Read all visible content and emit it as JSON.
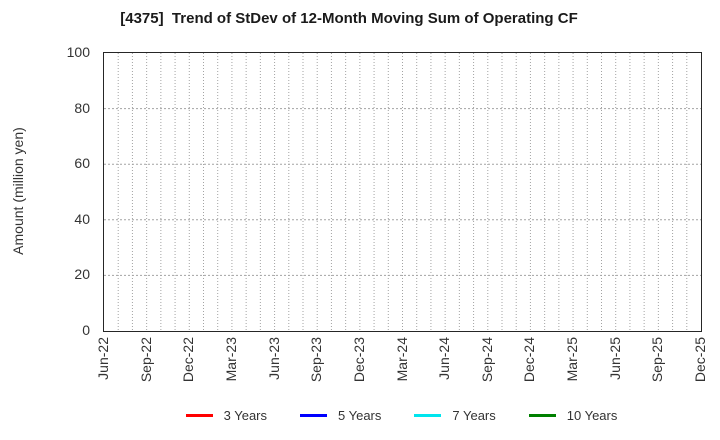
{
  "title": "[4375]  Trend of StDev of 12-Month Moving Sum of Operating CF",
  "y_axis": {
    "label": "Amount (million yen)",
    "min": 0,
    "max": 100,
    "ticks": [
      100,
      80,
      60,
      40,
      20,
      0
    ]
  },
  "x_axis": {
    "tick_labels": [
      "Jun-22",
      "Sep-22",
      "Dec-22",
      "Mar-23",
      "Jun-23",
      "Sep-23",
      "Dec-23",
      "Mar-24",
      "Jun-24",
      "Sep-24",
      "Dec-24",
      "Mar-25",
      "Jun-25",
      "Sep-25",
      "Dec-25"
    ],
    "minor_gridlines": "monthly"
  },
  "legend": {
    "items": [
      {
        "label": "3 Years",
        "color": "#ff0000"
      },
      {
        "label": "5 Years",
        "color": "#0000ff"
      },
      {
        "label": "7 Years",
        "color": "#00e5ee"
      },
      {
        "label": "10 Years",
        "color": "#008000"
      }
    ]
  },
  "chart_data": {
    "type": "line",
    "title": "[4375]  Trend of StDev of 12-Month Moving Sum of Operating CF",
    "xlabel": "",
    "ylabel": "Amount (million yen)",
    "ylim": [
      0,
      100
    ],
    "yticks": [
      0,
      20,
      40,
      60,
      80,
      100
    ],
    "x": [
      "Jun-22",
      "Sep-22",
      "Dec-22",
      "Mar-23",
      "Jun-23",
      "Sep-23",
      "Dec-23",
      "Mar-24",
      "Jun-24",
      "Sep-24",
      "Dec-24",
      "Mar-25",
      "Jun-25",
      "Sep-25",
      "Dec-25"
    ],
    "series": [
      {
        "name": "3 Years",
        "color": "#ff0000",
        "values": []
      },
      {
        "name": "5 Years",
        "color": "#0000ff",
        "values": []
      },
      {
        "name": "7 Years",
        "color": "#00e5ee",
        "values": []
      },
      {
        "name": "10 Years",
        "color": "#008000",
        "values": []
      }
    ],
    "grid": true,
    "legend_position": "bottom",
    "plot_area_empty": true
  }
}
